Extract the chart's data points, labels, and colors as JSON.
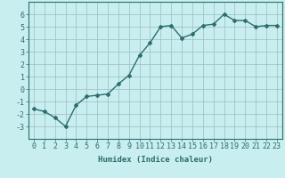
{
  "x": [
    0,
    1,
    2,
    3,
    4,
    5,
    6,
    7,
    8,
    9,
    10,
    11,
    12,
    13,
    14,
    15,
    16,
    17,
    18,
    19,
    20,
    21,
    22,
    23
  ],
  "y": [
    -1.6,
    -1.8,
    -2.3,
    -3.0,
    -1.3,
    -0.6,
    -0.5,
    -0.4,
    0.4,
    1.1,
    2.7,
    3.7,
    5.0,
    5.1,
    4.1,
    4.4,
    5.1,
    5.2,
    6.0,
    5.5,
    5.5,
    5.0,
    5.1,
    5.1
  ],
  "line_color": "#2d6e6e",
  "marker": "D",
  "marker_size": 2.0,
  "line_width": 1.0,
  "bg_color": "#c8eef0",
  "grid_color": "#9bbcbd",
  "xlabel": "Humidex (Indice chaleur)",
  "xlim": [
    -0.5,
    23.5
  ],
  "ylim": [
    -4,
    7
  ],
  "yticks": [
    -3,
    -2,
    -1,
    0,
    1,
    2,
    3,
    4,
    5,
    6
  ],
  "xticks": [
    0,
    1,
    2,
    3,
    4,
    5,
    6,
    7,
    8,
    9,
    10,
    11,
    12,
    13,
    14,
    15,
    16,
    17,
    18,
    19,
    20,
    21,
    22,
    23
  ],
  "label_fontsize": 6.5,
  "tick_fontsize": 6.0
}
